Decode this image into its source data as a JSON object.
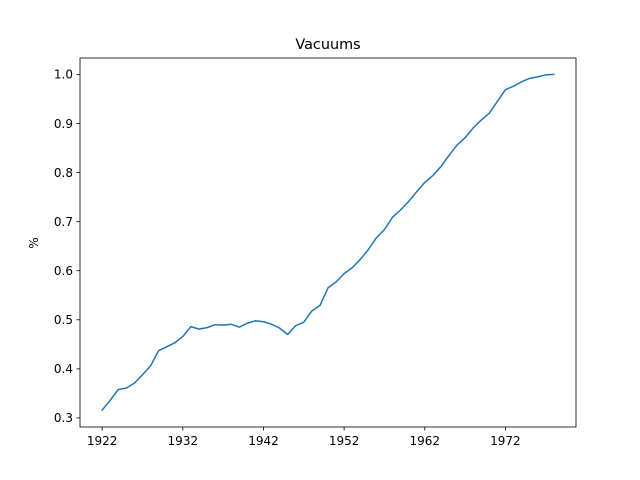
{
  "chart_data": {
    "type": "line",
    "title": "Vacuums",
    "xlabel": "",
    "ylabel": "%",
    "xlim": [
      1919.25,
      1980.75
    ],
    "ylim": [
      0.2815,
      1.0335
    ],
    "grid": false,
    "x_ticks": [
      1922,
      1932,
      1942,
      1952,
      1962,
      1972
    ],
    "x_tick_labels": [
      "1922",
      "1932",
      "1942",
      "1952",
      "1962",
      "1972"
    ],
    "y_ticks": [
      0.3,
      0.4,
      0.5,
      0.6,
      0.7,
      0.8,
      0.9,
      1.0
    ],
    "y_tick_labels": [
      "0.3",
      "0.4",
      "0.5",
      "0.6",
      "0.7",
      "0.8",
      "0.9",
      "1.0"
    ],
    "series": [
      {
        "name": "Vacuums",
        "color": "#1f77b4",
        "x": [
          1922,
          1923,
          1924,
          1925,
          1926,
          1927,
          1928,
          1929,
          1930,
          1931,
          1932,
          1933,
          1934,
          1935,
          1936,
          1937,
          1938,
          1939,
          1940,
          1941,
          1942,
          1943,
          1944,
          1945,
          1946,
          1947,
          1948,
          1949,
          1950,
          1951,
          1952,
          1953,
          1954,
          1955,
          1956,
          1957,
          1958,
          1959,
          1960,
          1961,
          1962,
          1963,
          1964,
          1965,
          1966,
          1967,
          1968,
          1969,
          1970,
          1971,
          1972,
          1973,
          1974,
          1975,
          1976,
          1977,
          1978
        ],
        "values": [
          0.316,
          0.336,
          0.358,
          0.361,
          0.371,
          0.388,
          0.406,
          0.437,
          0.445,
          0.453,
          0.466,
          0.486,
          0.481,
          0.484,
          0.49,
          0.489,
          0.491,
          0.485,
          0.493,
          0.498,
          0.496,
          0.491,
          0.483,
          0.47,
          0.488,
          0.495,
          0.518,
          0.529,
          0.565,
          0.577,
          0.594,
          0.606,
          0.623,
          0.643,
          0.667,
          0.684,
          0.709,
          0.724,
          0.741,
          0.761,
          0.78,
          0.794,
          0.812,
          0.835,
          0.856,
          0.871,
          0.891,
          0.907,
          0.921,
          0.945,
          0.969,
          0.976,
          0.985,
          0.992,
          0.995,
          0.999,
          1.0
        ]
      }
    ]
  }
}
